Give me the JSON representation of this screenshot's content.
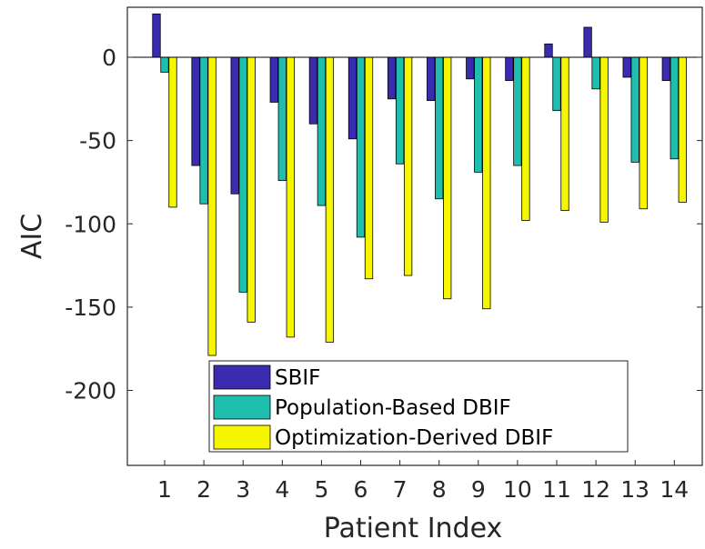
{
  "chart_data": {
    "type": "bar",
    "title": "",
    "xlabel": "Patient Index",
    "ylabel": "AIC",
    "categories": [
      "1",
      "2",
      "3",
      "4",
      "5",
      "6",
      "7",
      "8",
      "9",
      "10",
      "11",
      "12",
      "13",
      "14"
    ],
    "yticks": [
      0,
      -50,
      -100,
      -150,
      -200
    ],
    "ylim": [
      -245,
      30
    ],
    "grid": false,
    "legend_position": "bottom-center",
    "series": [
      {
        "name": "SBIF",
        "color": "#3a2bb0",
        "values": [
          26,
          -65,
          -82,
          -27,
          -40,
          -49,
          -25,
          -26,
          -13,
          -14,
          8,
          18,
          -12,
          -14
        ]
      },
      {
        "name": "Population-Based DBIF",
        "color": "#1fbfb0",
        "values": [
          -9,
          -88,
          -141,
          -74,
          -89,
          -108,
          -64,
          -85,
          -69,
          -65,
          -32,
          -19,
          -63,
          -61
        ]
      },
      {
        "name": "Optimization-Derived DBIF",
        "color": "#f6f600",
        "values": [
          -90,
          -179,
          -159,
          -168,
          -171,
          -133,
          -131,
          -145,
          -151,
          -98,
          -92,
          -99,
          -91,
          -87
        ]
      }
    ]
  }
}
